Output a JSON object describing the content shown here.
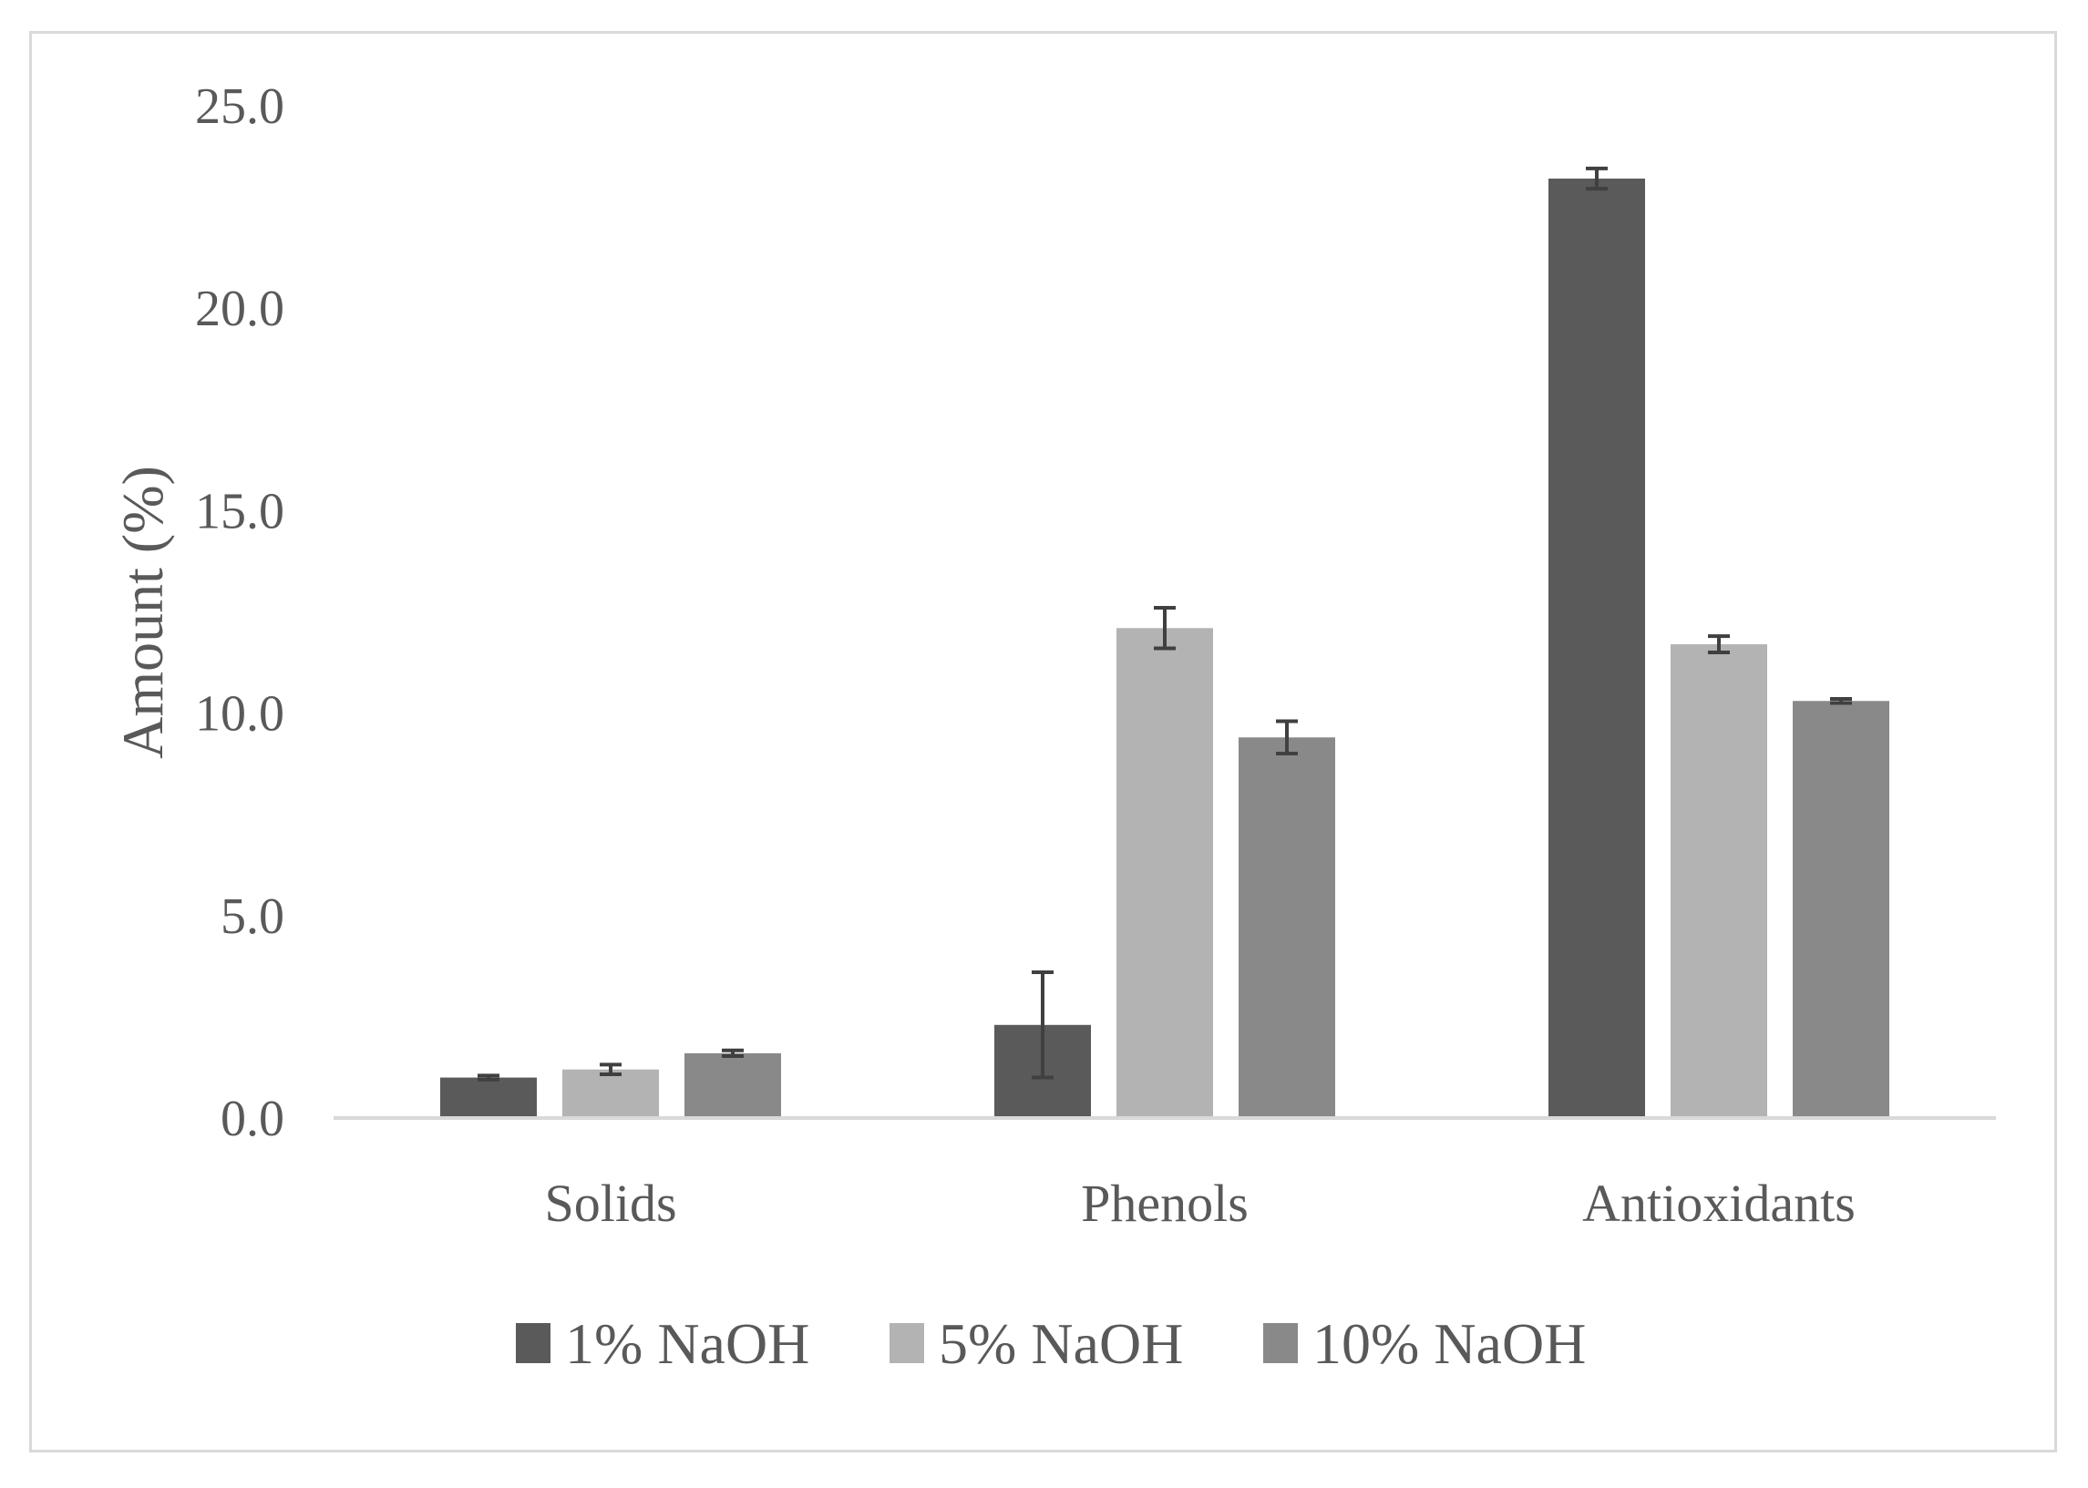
{
  "chart_data": {
    "type": "bar",
    "categories": [
      "Solids",
      "Phenols",
      "Antioxidants"
    ],
    "series": [
      {
        "name": "1% NaOH",
        "color": "#5a5a5a",
        "values": [
          1.0,
          2.3,
          23.2
        ],
        "errors": [
          0.05,
          1.3,
          0.25
        ]
      },
      {
        "name": "5% NaOH",
        "color": "#b3b3b3",
        "values": [
          1.2,
          12.1,
          11.7
        ],
        "errors": [
          0.12,
          0.5,
          0.2
        ]
      },
      {
        "name": "10% NaOH",
        "color": "#898989",
        "values": [
          1.6,
          9.4,
          10.3
        ],
        "errors": [
          0.07,
          0.4,
          0.05
        ]
      }
    ],
    "ylabel": "Amount (%)",
    "xlabel": "",
    "ylim": [
      0,
      25
    ],
    "yticks": [
      "0.0",
      "5.0",
      "10.0",
      "15.0",
      "20.0",
      "25.0"
    ],
    "grid": false,
    "legend_position": "bottom"
  }
}
